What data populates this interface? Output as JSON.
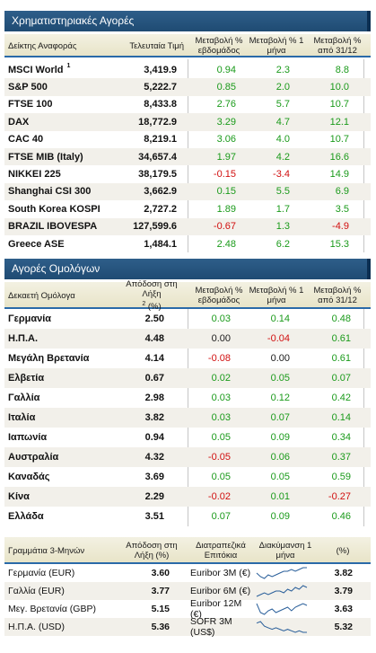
{
  "stocks": {
    "title": "Χρηματιστηριακές Αγορές",
    "headers": [
      "Δείκτης Αναφοράς",
      "Τελευταία Τιμή",
      "Μεταβολή % εβδομάδος",
      "Μεταβολή % 1 μήνα",
      "Μεταβολή % από 31/12"
    ],
    "rows": [
      {
        "name": "MSCI World",
        "sup": "1",
        "price": "3,419.9",
        "w": "0.94",
        "m": "2.3",
        "ytd": "8.8"
      },
      {
        "name": "S&P 500",
        "price": "5,222.7",
        "w": "0.85",
        "m": "2.0",
        "ytd": "10.0"
      },
      {
        "name": "FTSE 100",
        "price": "8,433.8",
        "w": "2.76",
        "m": "5.7",
        "ytd": "10.7"
      },
      {
        "name": "DAX",
        "price": "18,772.9",
        "w": "3.29",
        "m": "4.7",
        "ytd": "12.1"
      },
      {
        "name": "CAC 40",
        "price": "8,219.1",
        "w": "3.06",
        "m": "4.0",
        "ytd": "10.7"
      },
      {
        "name": "FTSE MIB (Italy)",
        "price": "34,657.4",
        "w": "1.97",
        "m": "4.2",
        "ytd": "16.6"
      },
      {
        "name": "NIKKEI 225",
        "price": "38,179.5",
        "w": "-0.15",
        "m": "-3.4",
        "ytd": "14.9"
      },
      {
        "name": "Shanghai CSI 300",
        "price": "3,662.9",
        "w": "0.15",
        "m": "5.5",
        "ytd": "6.9"
      },
      {
        "name": "South Korea KOSPI",
        "price": "2,727.2",
        "w": "1.89",
        "m": "1.7",
        "ytd": "3.5"
      },
      {
        "name": "BRAZIL IBOVESPA",
        "price": "127,599.6",
        "w": "-0.67",
        "m": "1.3",
        "ytd": "-4.9"
      },
      {
        "name": "Greece ASE",
        "price": "1,484.1",
        "w": "2.48",
        "m": "6.2",
        "ytd": "15.3"
      }
    ]
  },
  "bonds": {
    "title": "Αγορές Ομολόγων",
    "headers": [
      "Δεκαετή Ομόλογα",
      "Απόδοση στη Λήξη",
      "2",
      "(%)",
      "Μεταβολή % εβδομάδος",
      "Μεταβολή % 1 μήνα",
      "Μεταβολή % από 31/12"
    ],
    "rows": [
      {
        "name": "Γερμανία",
        "y": "2.50",
        "w": "0.03",
        "m": "0.14",
        "ytd": "0.48"
      },
      {
        "name": "Η.Π.Α.",
        "y": "4.48",
        "w": "0.00",
        "m": "-0.04",
        "ytd": "0.61"
      },
      {
        "name": "Μεγάλη Βρετανία",
        "y": "4.14",
        "w": "-0.08",
        "m": "0.00",
        "ytd": "0.61"
      },
      {
        "name": "Ελβετία",
        "y": "0.67",
        "w": "0.02",
        "m": "0.05",
        "ytd": "0.07"
      },
      {
        "name": "Γαλλία",
        "y": "2.98",
        "w": "0.03",
        "m": "0.12",
        "ytd": "0.42"
      },
      {
        "name": "Ιταλία",
        "y": "3.82",
        "w": "0.03",
        "m": "0.07",
        "ytd": "0.14"
      },
      {
        "name": "Ιαπωνία",
        "y": "0.94",
        "w": "0.05",
        "m": "0.09",
        "ytd": "0.34"
      },
      {
        "name": "Αυστραλία",
        "y": "4.32",
        "w": "-0.05",
        "m": "0.06",
        "ytd": "0.37"
      },
      {
        "name": "Καναδάς",
        "y": "3.69",
        "w": "0.05",
        "m": "0.05",
        "ytd": "0.59"
      },
      {
        "name": "Κίνα",
        "y": "2.29",
        "w": "-0.02",
        "m": "0.01",
        "ytd": "-0.27"
      },
      {
        "name": "Ελλάδα",
        "y": "3.51",
        "w": "0.07",
        "m": "0.09",
        "ytd": "0.46"
      }
    ]
  },
  "bills": {
    "headers": [
      "Γραμμάτια 3-Μηνών",
      "Απόδοση στη Λήξη (%)",
      "Διατραπεζικά Επιτόκια",
      "Διακύμανση 1 μήνα",
      "(%)"
    ],
    "rows": [
      {
        "name": "Γερμανία (EUR)",
        "y": "3.60",
        "rate": "Euribor 3M (€)",
        "val": "3.82",
        "trend": [
          6,
          4,
          3,
          5,
          4,
          5,
          6,
          7,
          7,
          8,
          7,
          8,
          9,
          9
        ]
      },
      {
        "name": "Γαλλία (EUR)",
        "y": "3.77",
        "rate": "Euribor 6M (€)",
        "val": "3.79",
        "trend": [
          3,
          4,
          5,
          4,
          5,
          6,
          6,
          5,
          7,
          6,
          8,
          7,
          9,
          8
        ]
      },
      {
        "name": "Μεγ. Βρετανία (GBP)",
        "y": "5.15",
        "rate": "Euribor 12M (€)",
        "val": "3.63",
        "trend": [
          9,
          4,
          3,
          5,
          6,
          4,
          5,
          6,
          7,
          5,
          7,
          8,
          9,
          8
        ]
      },
      {
        "name": "Η.Π.Α. (USD)",
        "y": "5.36",
        "rate": "SOFR 3M (US$)",
        "val": "5.32",
        "trend": [
          8,
          9,
          6,
          5,
          4,
          5,
          4,
          3,
          4,
          3,
          2,
          3,
          2,
          2
        ]
      }
    ]
  }
}
